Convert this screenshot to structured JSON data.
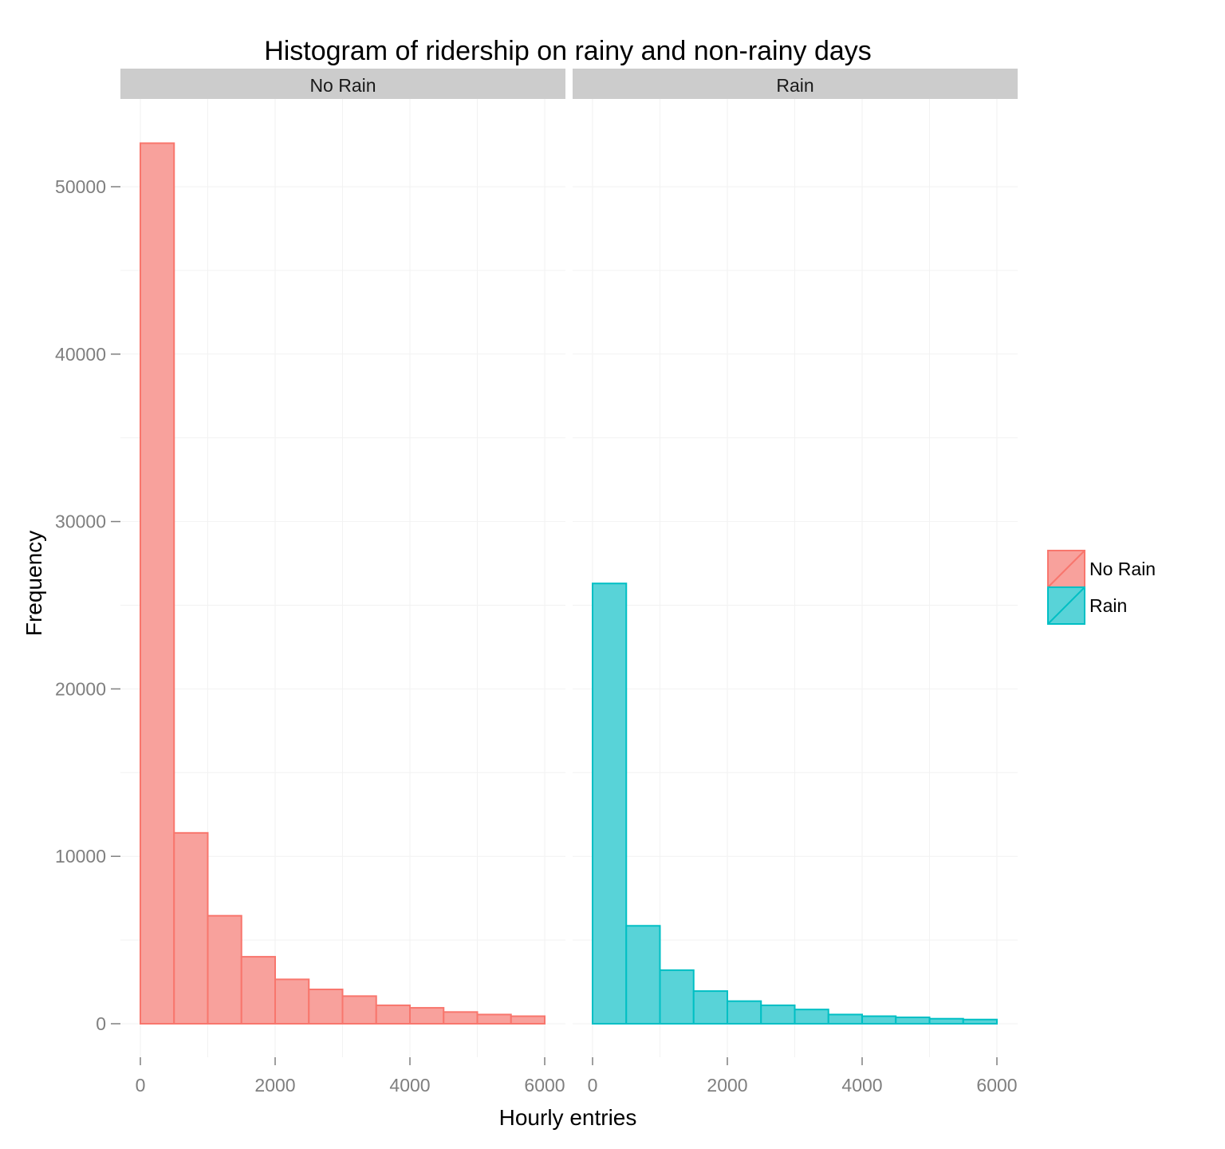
{
  "chart_data": {
    "type": "bar",
    "title": "Histogram of ridership on rainy and non-rainy days",
    "xlabel": "Hourly entries",
    "ylabel": "Frequency",
    "xlim": [
      0,
      6000
    ],
    "ylim": [
      0,
      55000
    ],
    "x_ticks": [
      0,
      2000,
      4000,
      6000
    ],
    "y_ticks": [
      0,
      10000,
      20000,
      30000,
      40000,
      50000
    ],
    "bin_edges": [
      0,
      500,
      1000,
      1500,
      2000,
      2500,
      3000,
      3500,
      4000,
      4500,
      5000,
      5500,
      6000
    ],
    "grid": true,
    "legend_position": "right",
    "panels": [
      {
        "strip": "No Rain",
        "series": "No Rain",
        "values": [
          52600,
          11400,
          6450,
          4000,
          2650,
          2050,
          1650,
          1100,
          950,
          700,
          550,
          450
        ]
      },
      {
        "strip": "Rain",
        "series": "Rain",
        "values": [
          26300,
          5850,
          3200,
          1950,
          1350,
          1100,
          850,
          550,
          450,
          380,
          300,
          250
        ]
      }
    ],
    "legend": [
      {
        "label": "No Rain",
        "fill": "#f8a19c",
        "stroke": "#f8766d"
      },
      {
        "label": "Rain",
        "fill": "#58d3d8",
        "stroke": "#00bfc4"
      }
    ],
    "colors": {
      "strip_bg": "#cccccc",
      "grid": "#f2f2f2",
      "tick": "#7f7f7f"
    }
  }
}
